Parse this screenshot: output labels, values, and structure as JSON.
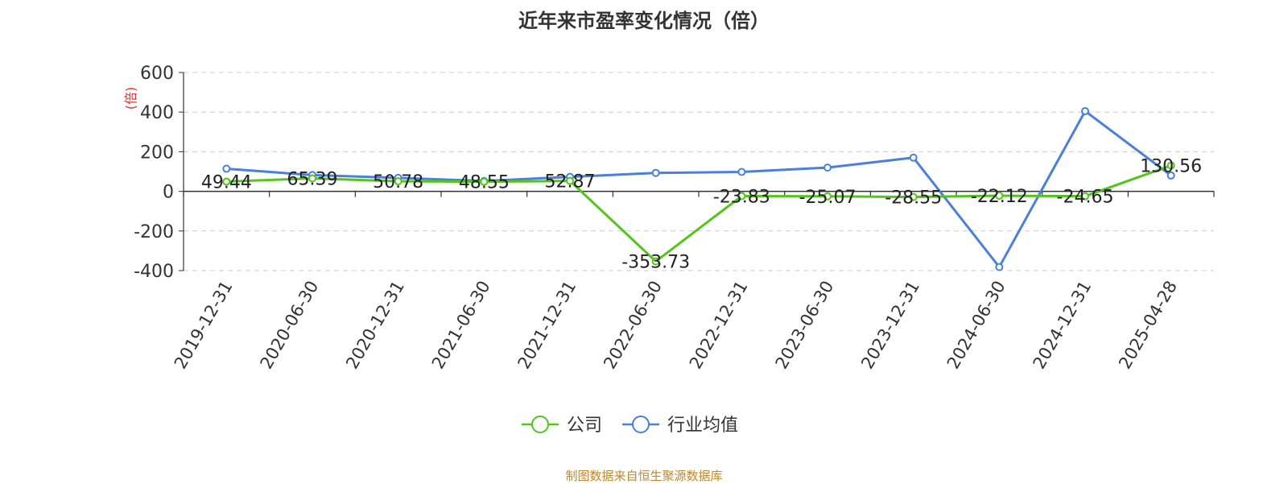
{
  "chart_data": {
    "type": "line",
    "title": "近年来市盈率变化情况（倍）",
    "ylabel": "(倍)",
    "xlabel": "",
    "ylim": [
      -400,
      600
    ],
    "yticks": [
      -400,
      -200,
      0,
      200,
      400,
      600
    ],
    "grid": true,
    "legend_position": "bottom",
    "categories": [
      "2019-12-31",
      "2020-06-30",
      "2020-12-31",
      "2021-06-30",
      "2021-12-31",
      "2022-06-30",
      "2022-12-31",
      "2023-06-30",
      "2023-12-31",
      "2024-06-30",
      "2024-12-31",
      "2025-04-28"
    ],
    "series": [
      {
        "name": "公司",
        "color": "#52c41a",
        "values": [
          49.44,
          65.39,
          50.78,
          48.55,
          52.87,
          -353.73,
          -23.83,
          -25.07,
          -28.55,
          -22.12,
          -24.65,
          130.56
        ],
        "labels": [
          "49.44",
          "65.39",
          "50.78",
          "48.55",
          "52.87",
          "-353.73",
          "-23.83",
          "-25.07",
          "-28.55",
          "-22.12",
          "-24.65",
          "130.56"
        ]
      },
      {
        "name": "行业均值",
        "color": "#4a7fdb",
        "values": [
          114,
          82,
          68,
          52,
          73,
          93,
          98,
          120,
          170,
          -382,
          405,
          80
        ]
      }
    ]
  },
  "source_text": "制图数据来自恒生聚源数据库",
  "source_color": "#c0872b",
  "ylabel_color": "#e03030"
}
